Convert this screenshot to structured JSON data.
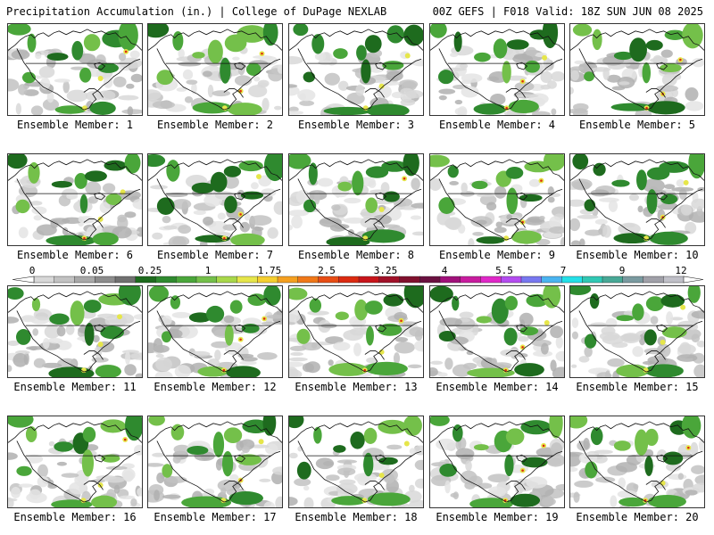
{
  "header": {
    "title_left": "Precipitation Accumulation (in.) | College of DuPage NEXLAB",
    "title_right": "00Z GEFS | F018 Valid: 18Z SUN JUN 08 2025"
  },
  "panels": [
    {
      "label": "Ensemble Member: 1"
    },
    {
      "label": "Ensemble Member: 2"
    },
    {
      "label": "Ensemble Member: 3"
    },
    {
      "label": "Ensemble Member: 4"
    },
    {
      "label": "Ensemble Member: 5"
    },
    {
      "label": "Ensemble Member: 6"
    },
    {
      "label": "Ensemble Member: 7"
    },
    {
      "label": "Ensemble Member: 8"
    },
    {
      "label": "Ensemble Member: 9"
    },
    {
      "label": "Ensemble Member: 10"
    },
    {
      "label": "Ensemble Member: 11"
    },
    {
      "label": "Ensemble Member: 12"
    },
    {
      "label": "Ensemble Member: 13"
    },
    {
      "label": "Ensemble Member: 14"
    },
    {
      "label": "Ensemble Member: 15"
    },
    {
      "label": "Ensemble Member: 16"
    },
    {
      "label": "Ensemble Member: 17"
    },
    {
      "label": "Ensemble Member: 18"
    },
    {
      "label": "Ensemble Member: 19"
    },
    {
      "label": "Ensemble Member: 20"
    }
  ],
  "colorbar": {
    "labels": [
      "0",
      "0.05",
      "0.25",
      "1",
      "1.75",
      "2.5",
      "3.25",
      "4",
      "5.5",
      "7",
      "9",
      "12"
    ],
    "colors": [
      "#d8d8d8",
      "#c2c2c2",
      "#a8a8a8",
      "#8c8c8c",
      "#707070",
      "#1e6b1e",
      "#2f8a2f",
      "#4aa63a",
      "#74c04a",
      "#a8d84a",
      "#e6e64a",
      "#f5cf30",
      "#f5a020",
      "#f07818",
      "#e84d14",
      "#dc2a10",
      "#c8141a",
      "#a01028",
      "#80102e",
      "#6a1040",
      "#a0107a",
      "#c81c9e",
      "#e028c8",
      "#b44cf0",
      "#7878f0",
      "#4ab4f0",
      "#24e0e8",
      "#30c8b4",
      "#48a896",
      "#7a9aa0",
      "#a0a0a8",
      "#c0c0c8"
    ]
  }
}
